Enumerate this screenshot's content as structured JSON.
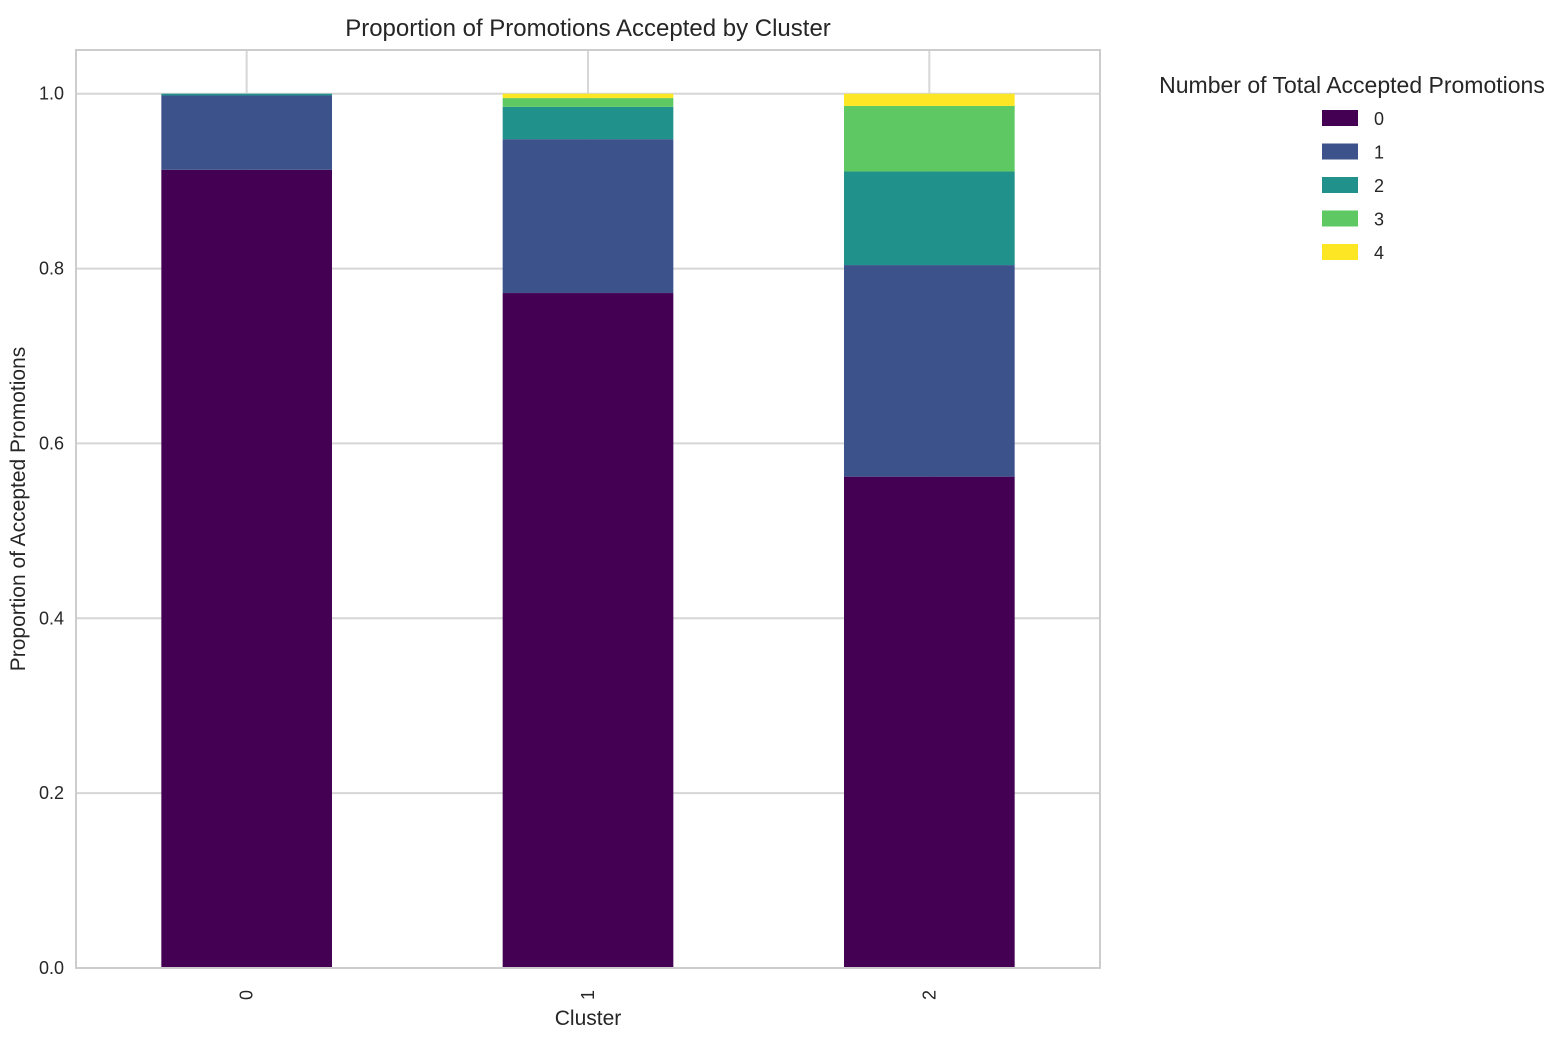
{
  "chart_data": {
    "type": "bar",
    "stacked": true,
    "title": "Proportion of Promotions Accepted by Cluster",
    "xlabel": "Cluster",
    "ylabel": "Proportion of Accepted Promotions",
    "categories": [
      "0",
      "1",
      "2"
    ],
    "ylim": [
      0,
      1.05
    ],
    "yticks": [
      0.0,
      0.2,
      0.4,
      0.6,
      0.8,
      1.0
    ],
    "ytick_labels": [
      "0.0",
      "0.2",
      "0.4",
      "0.6",
      "0.8",
      "1.0"
    ],
    "grid": true,
    "xtick_rotation": "vertical",
    "legend": {
      "title": "Number of Total Accepted Promotions",
      "placement": "outside right, top"
    },
    "series": [
      {
        "name": "0",
        "color": "#440154",
        "values": [
          0.913,
          0.772,
          0.562
        ]
      },
      {
        "name": "1",
        "color": "#3b528b",
        "values": [
          0.085,
          0.176,
          0.242
        ]
      },
      {
        "name": "2",
        "color": "#21918c",
        "values": [
          0.002,
          0.037,
          0.107
        ]
      },
      {
        "name": "3",
        "color": "#5ec962",
        "values": [
          0.0,
          0.01,
          0.075
        ]
      },
      {
        "name": "4",
        "color": "#fde725",
        "values": [
          0.0,
          0.005,
          0.014
        ]
      }
    ]
  }
}
